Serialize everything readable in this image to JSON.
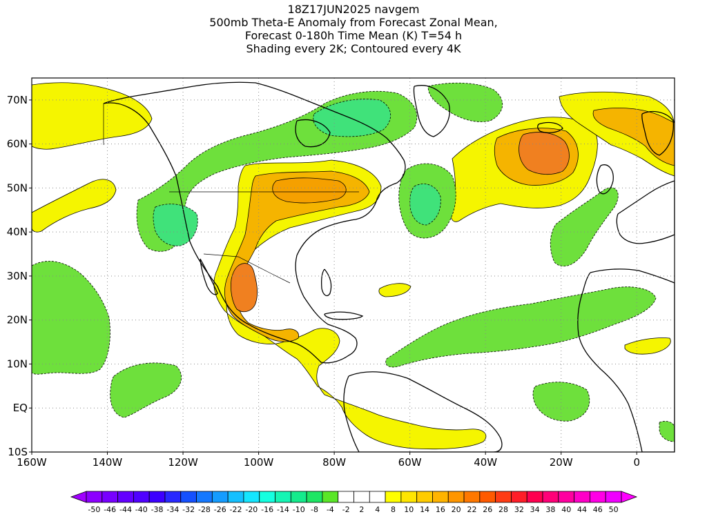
{
  "titles": [
    "18Z17JUN2025 navgem",
    "500mb Theta-E Anomaly from Forecast Zonal Mean,",
    "Forecast 0-180h Time Mean (K) T=54 h",
    "Shading every 2K; Contoured every 4K"
  ],
  "map": {
    "lon_range": [
      -160,
      10
    ],
    "lat_range": [
      -10,
      75
    ],
    "lat_ticks": [
      {
        "lat": 70,
        "label": "70N"
      },
      {
        "lat": 60,
        "label": "60N"
      },
      {
        "lat": 50,
        "label": "50N"
      },
      {
        "lat": 40,
        "label": "40N"
      },
      {
        "lat": 30,
        "label": "30N"
      },
      {
        "lat": 20,
        "label": "20N"
      },
      {
        "lat": 10,
        "label": "10N"
      },
      {
        "lat": 0,
        "label": "EQ"
      },
      {
        "lat": -10,
        "label": "10S"
      }
    ],
    "lon_ticks": [
      {
        "lon": -160,
        "label": "160W"
      },
      {
        "lon": -140,
        "label": "140W"
      },
      {
        "lon": -120,
        "label": "120W"
      },
      {
        "lon": -100,
        "label": "100W"
      },
      {
        "lon": -80,
        "label": "80W"
      },
      {
        "lon": -60,
        "label": "60W"
      },
      {
        "lon": -40,
        "label": "40W"
      },
      {
        "lon": -20,
        "label": "20W"
      },
      {
        "lon": 0,
        "label": "0"
      }
    ],
    "gridlines": "dotted",
    "colors": {
      "neg4": "#6ee03c",
      "neg6": "#40e27a",
      "neg8": "#20d8a0",
      "pos2": "#f5f500",
      "pos4": "#f5d400",
      "pos6": "#f5b400",
      "pos8": "#f5a000",
      "pos10": "#f08020",
      "land_outline": "#000000"
    }
  },
  "colorbar": {
    "labels": [
      "-50",
      "-46",
      "-44",
      "-40",
      "-38",
      "-34",
      "-32",
      "-28",
      "-26",
      "-22",
      "-20",
      "-16",
      "-14",
      "-10",
      "-8",
      "-4",
      "-2",
      "2",
      "4",
      "8",
      "10",
      "14",
      "16",
      "20",
      "22",
      "26",
      "28",
      "32",
      "34",
      "38",
      "40",
      "44",
      "46",
      "50"
    ],
    "colors": [
      "#8c00ff",
      "#7800ff",
      "#6400ff",
      "#5000ff",
      "#3c00ff",
      "#2828ff",
      "#1450ff",
      "#1478ff",
      "#149cff",
      "#14c0ff",
      "#14e6ff",
      "#14ffe0",
      "#14f5b4",
      "#14eb8c",
      "#1ee664",
      "#5ae628",
      "#ffffff",
      "#ffffff",
      "#ffffff",
      "#ffff00",
      "#ffe600",
      "#ffcc00",
      "#ffb400",
      "#ff9600",
      "#ff7800",
      "#ff5a00",
      "#ff3c14",
      "#ff1e28",
      "#ff0050",
      "#ff0078",
      "#ff00a0",
      "#ff00c8",
      "#ff00e6",
      "#f000ff"
    ]
  }
}
